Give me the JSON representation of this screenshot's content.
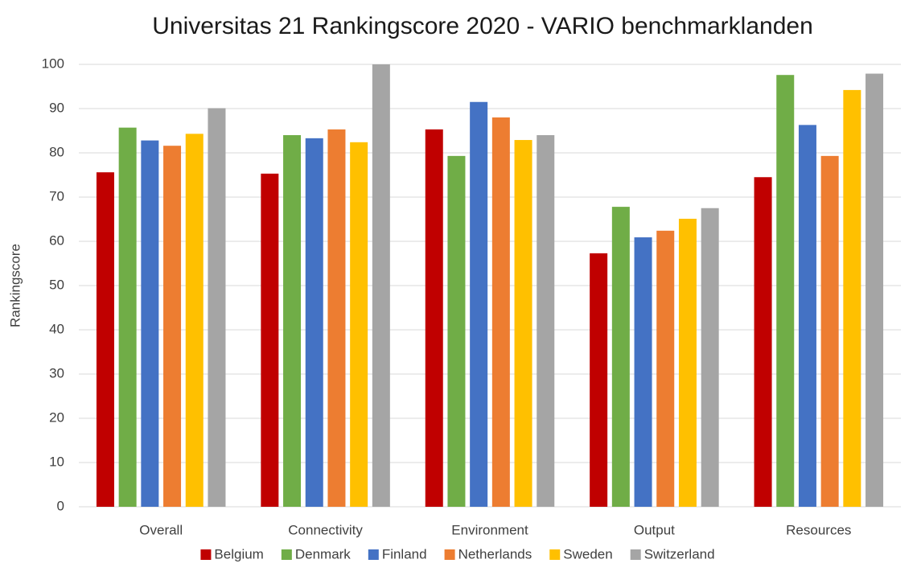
{
  "chart_data": {
    "type": "bar",
    "title": "Universitas 21 Rankingscore 2020 - VARIO benchmarklanden",
    "y_label": "Rankingscore",
    "categories": [
      "Overall",
      "Connectivity",
      "Environment",
      "Output",
      "Resources"
    ],
    "series": [
      {
        "name": "Belgium",
        "color": "#c00000",
        "values": [
          75.6,
          75.3,
          85.3,
          57.3,
          74.5
        ]
      },
      {
        "name": "Denmark",
        "color": "#70ad47",
        "values": [
          85.7,
          84.0,
          79.3,
          67.8,
          97.6
        ]
      },
      {
        "name": "Finland",
        "color": "#4472c4",
        "values": [
          82.8,
          83.3,
          91.5,
          60.9,
          86.3
        ]
      },
      {
        "name": "Netherlands",
        "color": "#ed7d31",
        "values": [
          81.6,
          85.3,
          88.0,
          62.4,
          79.3
        ]
      },
      {
        "name": "Sweden",
        "color": "#ffc000",
        "values": [
          84.3,
          82.4,
          82.9,
          65.1,
          94.2
        ]
      },
      {
        "name": "Switzerland",
        "color": "#a5a5a5",
        "values": [
          90.1,
          100,
          84.0,
          67.5,
          97.9
        ]
      }
    ],
    "ylim": [
      0,
      100
    ],
    "yticks": [
      0,
      10,
      20,
      30,
      40,
      50,
      60,
      70,
      80,
      90,
      100
    ],
    "grid": true,
    "legend": "bottom"
  }
}
